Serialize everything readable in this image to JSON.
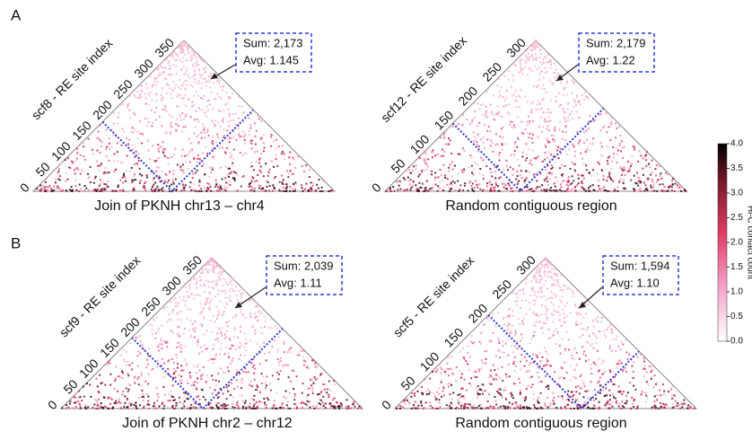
{
  "panel_labels": [
    "A",
    "B"
  ],
  "plots": [
    {
      "axis_label": "scf8 - RE site index",
      "caption": "Join of PKNH chr13 – chr4",
      "ticks": [
        0,
        50,
        100,
        150,
        200,
        250,
        300,
        350
      ],
      "annotation": {
        "sum": "Sum: 2,173",
        "avg": "Avg: 1.145"
      }
    },
    {
      "axis_label": "scf12 - RE site index",
      "caption": "Random contiguous region",
      "ticks": [
        0,
        50,
        100,
        150,
        200,
        250,
        300
      ],
      "annotation": {
        "sum": "Sum: 2,179",
        "avg": "Avg: 1.22"
      }
    },
    {
      "axis_label": "scf9 - RE site index",
      "caption": "Join of PKNH chr2 – chr12",
      "ticks": [
        0,
        50,
        100,
        150,
        200,
        250,
        300,
        350
      ],
      "annotation": {
        "sum": "Sum: 2,039",
        "avg": "Avg: 1.11"
      }
    },
    {
      "axis_label": "scf5 - RE site index",
      "caption": "Random contiguous region",
      "ticks": [
        0,
        50,
        100,
        150,
        200,
        250,
        300
      ],
      "annotation": {
        "sum": "Sum: 1,594",
        "avg": "Avg: 1.10"
      }
    }
  ],
  "colorbar": {
    "label": "Hi-C contact count",
    "ticks": [
      {
        "value": 0,
        "label": "0.0"
      },
      {
        "value": 0.5,
        "label": "0.5"
      },
      {
        "value": 1,
        "label": "1.0"
      },
      {
        "value": 1.5,
        "label": "1.5"
      },
      {
        "value": 2,
        "label": "2.0"
      },
      {
        "value": 2.5,
        "label": "2.5"
      },
      {
        "value": 3,
        "label": "3.0"
      },
      {
        "value": 3.5,
        "label": "3.5"
      },
      {
        "value": 4,
        "label": "4.0"
      }
    ]
  }
}
